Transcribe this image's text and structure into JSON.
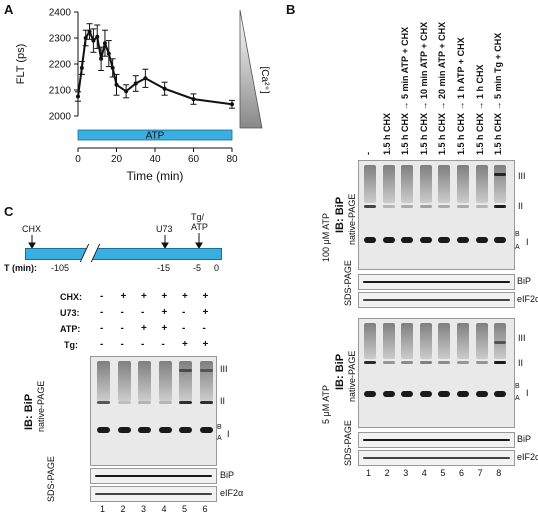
{
  "panel_a": {
    "letter": "A",
    "chart_data": {
      "type": "line",
      "ylabel": "FLT (ps)",
      "xlabel": "Time (min)",
      "ylim": [
        2000,
        2400
      ],
      "yticks": [
        "2000",
        "2100",
        "2200",
        "2300",
        "2400"
      ],
      "xticks": [
        "0",
        "20",
        "40",
        "60",
        "80"
      ],
      "xlim": [
        0,
        80
      ],
      "bar_label": "ATP",
      "gradient_label": "[Ca²⁺]",
      "points": [
        {
          "x": 0,
          "y": 2075,
          "err": 18
        },
        {
          "x": 2,
          "y": 2185,
          "err": 25
        },
        {
          "x": 4,
          "y": 2300,
          "err": 30
        },
        {
          "x": 6,
          "y": 2325,
          "err": 30
        },
        {
          "x": 8,
          "y": 2290,
          "err": 45
        },
        {
          "x": 10,
          "y": 2305,
          "err": 45
        },
        {
          "x": 12,
          "y": 2220,
          "err": 45
        },
        {
          "x": 14,
          "y": 2280,
          "err": 50
        },
        {
          "x": 16,
          "y": 2240,
          "err": 50
        },
        {
          "x": 18,
          "y": 2185,
          "err": 35
        },
        {
          "x": 20,
          "y": 2120,
          "err": 40
        },
        {
          "x": 25,
          "y": 2095,
          "err": 25
        },
        {
          "x": 30,
          "y": 2125,
          "err": 30
        },
        {
          "x": 35,
          "y": 2145,
          "err": 35
        },
        {
          "x": 45,
          "y": 2105,
          "err": 25
        },
        {
          "x": 60,
          "y": 2065,
          "err": 20
        },
        {
          "x": 80,
          "y": 2045,
          "err": 15
        }
      ]
    }
  },
  "panel_b": {
    "letter": "B",
    "columns": [
      "-",
      "1.5 h CHX",
      "1.5 h CHX → 5 min ATP + CHX",
      "1.5 h CHX → 10 min ATP + CHX",
      "1.5 h CHX → 20 min ATP + CHX",
      "1.5 h CHX → 1 h ATP + CHX",
      "1.5 h CHX → 1 h CHX",
      "1.5 h CHX → 5 min Tg + CHX"
    ],
    "lanes": [
      "1",
      "2",
      "3",
      "4",
      "5",
      "6",
      "7",
      "8"
    ],
    "block1_label": "100 μM ATP",
    "block2_label": "5 μM ATP",
    "ib_label": "IB: BiP",
    "native_label": "native-PAGE",
    "sds_label": "SDS-PAGE",
    "bip": "BiP",
    "eif": "eIF2α",
    "band_labels": {
      "iii": "III",
      "ii": "II",
      "b": "B",
      "a": "A",
      "i": "I"
    }
  },
  "panel_c": {
    "letter": "C",
    "timeline": {
      "events": [
        "CHX",
        "U73",
        "Tg/\nATP"
      ],
      "event1": "CHX",
      "event2": "U73",
      "event3a": "Tg/",
      "event3b": "ATP",
      "t_label": "T (min):",
      "ticks": [
        "-105",
        "-15",
        "-5",
        "0"
      ]
    },
    "conditions": [
      {
        "name": "CHX:",
        "values": [
          "-",
          "+",
          "+",
          "+",
          "+",
          "+"
        ]
      },
      {
        "name": "U73:",
        "values": [
          "-",
          "-",
          "-",
          "+",
          "-",
          "+"
        ]
      },
      {
        "name": "ATP:",
        "values": [
          "-",
          "-",
          "+",
          "+",
          "-",
          "-"
        ]
      },
      {
        "name": "Tg:",
        "values": [
          "-",
          "-",
          "-",
          "-",
          "+",
          "+"
        ]
      }
    ],
    "lanes": [
      "1",
      "2",
      "3",
      "4",
      "5",
      "6"
    ],
    "ib_label": "IB: BiP",
    "native_label": "native-PAGE",
    "sds_label": "SDS-PAGE",
    "bip": "BiP",
    "eif": "eIF2α",
    "band_labels": {
      "iii": "III",
      "ii": "II",
      "b": "B",
      "a": "A",
      "i": "I"
    }
  },
  "colors": {
    "atp_bar": "#3aaee0",
    "line": "#111111"
  }
}
